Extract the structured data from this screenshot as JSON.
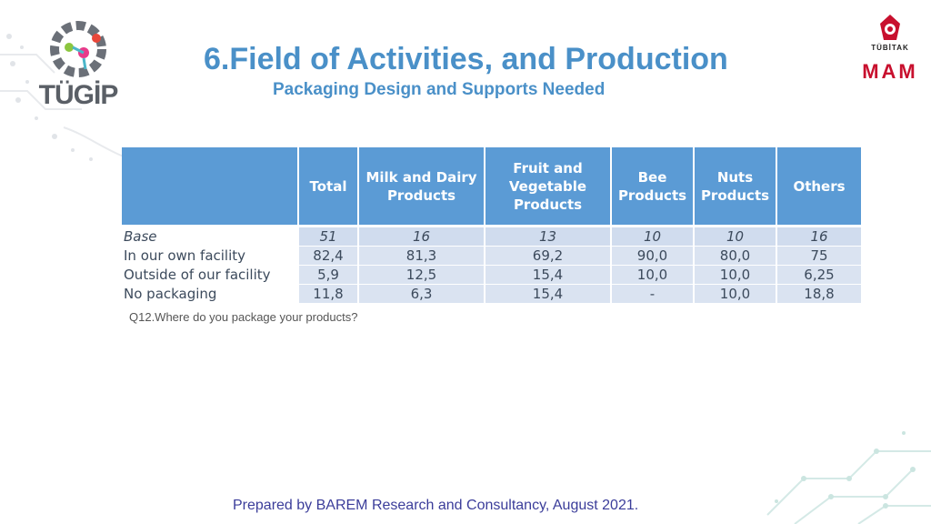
{
  "logos": {
    "left_text": "TÜGİP",
    "right_small": "TÜBİTAK",
    "right_big": "MAM"
  },
  "title": "6.Field of Activities, and Production",
  "subtitle": "Packaging Design and Supports Needed",
  "table": {
    "headers": [
      "",
      "Total",
      "Milk and Dairy Products",
      "Fruit and Vegetable Products",
      "Bee Products",
      "Nuts Products",
      "Others"
    ],
    "rows": [
      {
        "label": "Base",
        "values": [
          "51",
          "16",
          "13",
          "10",
          "10",
          "16"
        ]
      },
      {
        "label": "In our own facility",
        "values": [
          "82,4",
          "81,3",
          "69,2",
          "90,0",
          "80,0",
          "75"
        ]
      },
      {
        "label": "Outside of our facility",
        "values": [
          "5,9",
          "12,5",
          "15,4",
          "10,0",
          "10,0",
          "6,25"
        ]
      },
      {
        "label": "No packaging",
        "values": [
          "11,8",
          "6,3",
          "15,4",
          "-",
          "10,0",
          "18,8"
        ]
      }
    ]
  },
  "note": "Q12.Where do you package your products?",
  "footer": "Prepared by BAREM Research and Consultancy, August 2021.",
  "colors": {
    "accent": "#4a90c8",
    "header_bg": "#5b9bd5",
    "row_bg": "#dae3f1",
    "footer_text": "#3b3d9a",
    "mam_red": "#c8102e"
  }
}
